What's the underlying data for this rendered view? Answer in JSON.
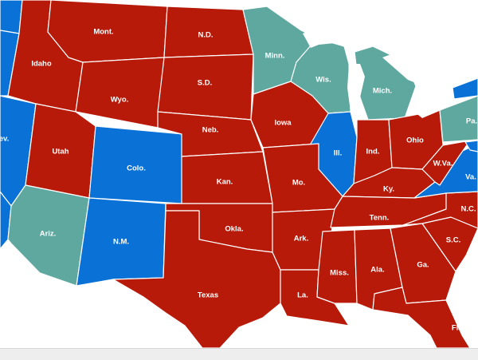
{
  "colors": {
    "red": "#b81a0a",
    "blue": "#0a72d6",
    "teal": "#5ea8a0",
    "background": "#ffffff",
    "water": "#ffffff",
    "border": "#ffffff"
  },
  "states": [
    {
      "id": "mont",
      "label": "Mont.",
      "party": "red"
    },
    {
      "id": "nd",
      "label": "N.D.",
      "party": "red"
    },
    {
      "id": "minn",
      "label": "Minn.",
      "party": "teal"
    },
    {
      "id": "idaho",
      "label": "Idaho",
      "party": "red"
    },
    {
      "id": "wis",
      "label": "Wis.",
      "party": "teal"
    },
    {
      "id": "sd",
      "label": "S.D.",
      "party": "red"
    },
    {
      "id": "mich",
      "label": "Mich.",
      "party": "teal"
    },
    {
      "id": "wyo",
      "label": "Wyo.",
      "party": "red"
    },
    {
      "id": "iowa",
      "label": "Iowa",
      "party": "red"
    },
    {
      "id": "nev",
      "label": "ev.",
      "party": "blue"
    },
    {
      "id": "pa",
      "label": "Pa.",
      "party": "teal"
    },
    {
      "id": "neb",
      "label": "Neb.",
      "party": "red"
    },
    {
      "id": "ill",
      "label": "Ill.",
      "party": "blue"
    },
    {
      "id": "ind",
      "label": "Ind.",
      "party": "red"
    },
    {
      "id": "ohio",
      "label": "Ohio",
      "party": "red"
    },
    {
      "id": "utah",
      "label": "Utah",
      "party": "red"
    },
    {
      "id": "colo",
      "label": "Colo.",
      "party": "blue"
    },
    {
      "id": "wva",
      "label": "W.Va.",
      "party": "red"
    },
    {
      "id": "kan",
      "label": "Kan.",
      "party": "red"
    },
    {
      "id": "mo",
      "label": "Mo.",
      "party": "red"
    },
    {
      "id": "va",
      "label": "Va.",
      "party": "blue"
    },
    {
      "id": "ky",
      "label": "Ky.",
      "party": "red"
    },
    {
      "id": "nc",
      "label": "N.C.",
      "party": "red"
    },
    {
      "id": "tenn",
      "label": "Tenn.",
      "party": "red"
    },
    {
      "id": "okla",
      "label": "Okla.",
      "party": "red"
    },
    {
      "id": "ariz",
      "label": "Ariz.",
      "party": "teal"
    },
    {
      "id": "ark",
      "label": "Ark.",
      "party": "red"
    },
    {
      "id": "sc",
      "label": "S.C.",
      "party": "red"
    },
    {
      "id": "nm",
      "label": "N.M.",
      "party": "blue"
    },
    {
      "id": "ga",
      "label": "Ga.",
      "party": "red"
    },
    {
      "id": "miss",
      "label": "Miss.",
      "party": "red"
    },
    {
      "id": "ala",
      "label": "Ala.",
      "party": "red"
    },
    {
      "id": "texas",
      "label": "Texas",
      "party": "red"
    },
    {
      "id": "la",
      "label": "La.",
      "party": "red"
    },
    {
      "id": "fla",
      "label": "Fla.",
      "party": "red"
    },
    {
      "id": "wash",
      "label": "",
      "party": "blue"
    },
    {
      "id": "ore",
      "label": "",
      "party": "blue"
    },
    {
      "id": "calif",
      "label": "",
      "party": "blue"
    },
    {
      "id": "ny",
      "label": "",
      "party": "blue"
    },
    {
      "id": "md",
      "label": "",
      "party": "blue"
    }
  ]
}
